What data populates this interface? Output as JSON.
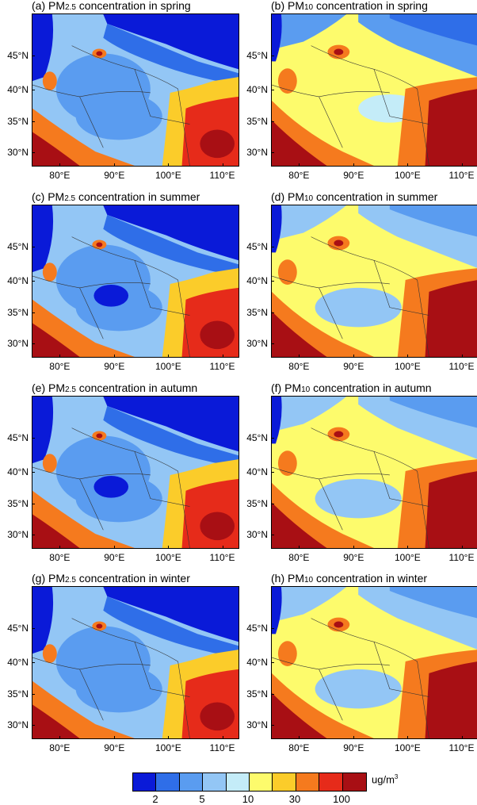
{
  "panels": [
    {
      "id": "a",
      "prefix": "(a) PM",
      "sub": "2.5",
      "suffix": " concentration in spring",
      "pollutant": "PM2.5",
      "season": "spring"
    },
    {
      "id": "b",
      "prefix": "(b) PM",
      "sub": "10",
      "suffix": " concentration in spring",
      "pollutant": "PM10",
      "season": "spring"
    },
    {
      "id": "c",
      "prefix": "(c) PM",
      "sub": "2.5",
      "suffix": " concentration in summer",
      "pollutant": "PM2.5",
      "season": "summer"
    },
    {
      "id": "d",
      "prefix": "(d) PM",
      "sub": "10",
      "suffix": " concentration in summer",
      "pollutant": "PM10",
      "season": "summer"
    },
    {
      "id": "e",
      "prefix": "(e) PM",
      "sub": "2.5",
      "suffix": " concentration in autumn",
      "pollutant": "PM2.5",
      "season": "autumn"
    },
    {
      "id": "f",
      "prefix": "(f) PM",
      "sub": "10",
      "suffix": " concentration in autumn",
      "pollutant": "PM10",
      "season": "autumn"
    },
    {
      "id": "g",
      "prefix": "(g) PM",
      "sub": "2.5",
      "suffix": " concentration in winter",
      "pollutant": "PM2.5",
      "season": "winter"
    },
    {
      "id": "h",
      "prefix": "(h) PM",
      "sub": "10",
      "suffix": " concentration in winter",
      "pollutant": "PM10",
      "season": "winter"
    }
  ],
  "axes": {
    "lat_labels": [
      "45°N",
      "40°N",
      "35°N",
      "30°N"
    ],
    "lon_labels": [
      "80°E",
      "90°E",
      "100°E",
      "110°E"
    ]
  },
  "colorbar": {
    "colors": [
      "#0a1ad8",
      "#2f6ee8",
      "#5a9cf0",
      "#93c6f5",
      "#c4ecf8",
      "#fdfb6c",
      "#fbcc2a",
      "#f57a1e",
      "#e62b1a",
      "#a80f14"
    ],
    "tick_labels": [
      "2",
      "5",
      "10",
      "30",
      "100"
    ],
    "unit_base": "ug/m",
    "unit_sup": "3"
  }
}
